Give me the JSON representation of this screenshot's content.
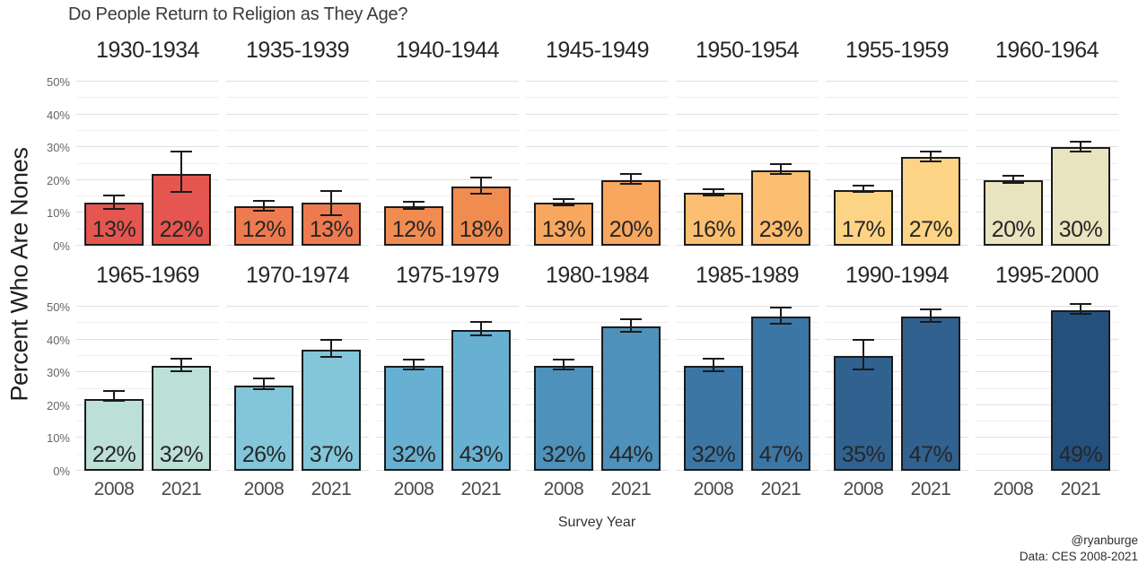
{
  "header": {
    "title": "Do People Return to Religion as They Age?"
  },
  "axes": {
    "ylabel": "Percent Who Are Nones",
    "xlabel": "Survey Year"
  },
  "caption": {
    "line1": "@ryanburge",
    "line2": "Data: CES 2008-2021"
  },
  "chart_data": {
    "type": "bar",
    "title": "Do People Return to Religion as They Age?",
    "xlabel": "Survey Year",
    "ylabel": "Percent Who Are Nones",
    "x_categories": [
      "2008",
      "2021"
    ],
    "y_axis": {
      "min": 0,
      "max": 52,
      "major_ticks": [
        0,
        10,
        20,
        30,
        40,
        50
      ],
      "minor_ticks": [
        5,
        15,
        25,
        35,
        45
      ],
      "tick_labels": [
        "0%",
        "10%",
        "20%",
        "30%",
        "40%",
        "50%"
      ],
      "grid": true
    },
    "layout": {
      "rows": 2,
      "cols": 7,
      "legend": "none",
      "error_bars": true
    },
    "facets": [
      {
        "cohort": "1930-1934",
        "color": "#E4564F",
        "bars": [
          {
            "year": "2008",
            "value": 13,
            "label": "13%",
            "err_low": 11,
            "err_high": 15
          },
          {
            "year": "2021",
            "value": 22,
            "label": "22%",
            "err_low": 16,
            "err_high": 28.5
          }
        ]
      },
      {
        "cohort": "1935-1939",
        "color": "#EE7B50",
        "bars": [
          {
            "year": "2008",
            "value": 12,
            "label": "12%",
            "err_low": 10.5,
            "err_high": 13.5
          },
          {
            "year": "2021",
            "value": 13,
            "label": "13%",
            "err_low": 9,
            "err_high": 16.5
          }
        ]
      },
      {
        "cohort": "1940-1944",
        "color": "#F18C51",
        "bars": [
          {
            "year": "2008",
            "value": 12,
            "label": "12%",
            "err_low": 11,
            "err_high": 13
          },
          {
            "year": "2021",
            "value": 18,
            "label": "18%",
            "err_low": 15.5,
            "err_high": 20.5
          }
        ]
      },
      {
        "cohort": "1945-1949",
        "color": "#F9A65F",
        "bars": [
          {
            "year": "2008",
            "value": 13,
            "label": "13%",
            "err_low": 12,
            "err_high": 14
          },
          {
            "year": "2021",
            "value": 20,
            "label": "20%",
            "err_low": 18.5,
            "err_high": 21.5
          }
        ]
      },
      {
        "cohort": "1950-1954",
        "color": "#FCBE70",
        "bars": [
          {
            "year": "2008",
            "value": 16,
            "label": "16%",
            "err_low": 15,
            "err_high": 17
          },
          {
            "year": "2021",
            "value": 23,
            "label": "23%",
            "err_low": 21.5,
            "err_high": 24.5
          }
        ]
      },
      {
        "cohort": "1955-1959",
        "color": "#FDD485",
        "bars": [
          {
            "year": "2008",
            "value": 17,
            "label": "17%",
            "err_low": 16,
            "err_high": 18
          },
          {
            "year": "2021",
            "value": 27,
            "label": "27%",
            "err_low": 25.5,
            "err_high": 28.5
          }
        ]
      },
      {
        "cohort": "1960-1964",
        "color": "#EAE3BF",
        "bars": [
          {
            "year": "2008",
            "value": 20,
            "label": "20%",
            "err_low": 19,
            "err_high": 21
          },
          {
            "year": "2021",
            "value": 30,
            "label": "30%",
            "err_low": 28.5,
            "err_high": 31.5
          }
        ]
      },
      {
        "cohort": "1965-1969",
        "color": "#BCE0D8",
        "bars": [
          {
            "year": "2008",
            "value": 22,
            "label": "22%",
            "err_low": 21,
            "err_high": 24
          },
          {
            "year": "2021",
            "value": 32,
            "label": "32%",
            "err_low": 30,
            "err_high": 34
          }
        ]
      },
      {
        "cohort": "1970-1974",
        "color": "#83C6DA",
        "bars": [
          {
            "year": "2008",
            "value": 26,
            "label": "26%",
            "err_low": 24.5,
            "err_high": 28
          },
          {
            "year": "2021",
            "value": 37,
            "label": "37%",
            "err_low": 34.5,
            "err_high": 39.5
          }
        ]
      },
      {
        "cohort": "1975-1979",
        "color": "#68B0D1",
        "bars": [
          {
            "year": "2008",
            "value": 32,
            "label": "32%",
            "err_low": 30.5,
            "err_high": 33.5
          },
          {
            "year": "2021",
            "value": 43,
            "label": "43%",
            "err_low": 41,
            "err_high": 45
          }
        ]
      },
      {
        "cohort": "1980-1984",
        "color": "#4E91BA",
        "bars": [
          {
            "year": "2008",
            "value": 32,
            "label": "32%",
            "err_low": 30.5,
            "err_high": 33.5
          },
          {
            "year": "2021",
            "value": 44,
            "label": "44%",
            "err_low": 42,
            "err_high": 46
          }
        ]
      },
      {
        "cohort": "1985-1989",
        "color": "#3C76A5",
        "bars": [
          {
            "year": "2008",
            "value": 32,
            "label": "32%",
            "err_low": 30,
            "err_high": 34
          },
          {
            "year": "2021",
            "value": 47,
            "label": "47%",
            "err_low": 44.5,
            "err_high": 49.5
          }
        ]
      },
      {
        "cohort": "1990-1994",
        "color": "#31618F",
        "bars": [
          {
            "year": "2008",
            "value": 35,
            "label": "35%",
            "err_low": 30.5,
            "err_high": 39.5
          },
          {
            "year": "2021",
            "value": 47,
            "label": "47%",
            "err_low": 45,
            "err_high": 49
          }
        ]
      },
      {
        "cohort": "1995-2000",
        "color": "#24507E",
        "bars": [
          {
            "year": "2008",
            "value": null,
            "label": "",
            "err_low": null,
            "err_high": null
          },
          {
            "year": "2021",
            "value": 49,
            "label": "49%",
            "err_low": 47.5,
            "err_high": 50.5
          }
        ]
      }
    ]
  }
}
